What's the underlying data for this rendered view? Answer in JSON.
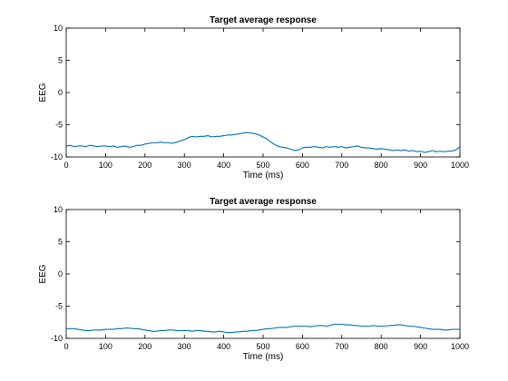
{
  "chart_data": [
    {
      "type": "line",
      "title": "Target average response",
      "xlabel": "Time (ms)",
      "ylabel": "EEG",
      "xlim": [
        0,
        1000
      ],
      "ylim": [
        -10,
        10
      ],
      "xticks": [
        0,
        100,
        200,
        300,
        400,
        500,
        600,
        700,
        800,
        900,
        1000
      ],
      "yticks": [
        -10,
        -5,
        0,
        5,
        10
      ],
      "grid": false,
      "series": [
        {
          "name": "Target average response",
          "color": "#0072BD",
          "x": [
            0,
            10,
            20,
            30,
            40,
            50,
            60,
            70,
            80,
            90,
            100,
            110,
            120,
            130,
            140,
            150,
            160,
            170,
            180,
            190,
            200,
            210,
            220,
            230,
            240,
            250,
            260,
            270,
            280,
            290,
            300,
            310,
            320,
            330,
            340,
            350,
            360,
            370,
            380,
            390,
            400,
            410,
            420,
            430,
            440,
            450,
            460,
            470,
            480,
            490,
            500,
            510,
            520,
            530,
            540,
            550,
            560,
            570,
            580,
            590,
            600,
            610,
            620,
            630,
            640,
            650,
            660,
            670,
            680,
            690,
            700,
            710,
            720,
            730,
            740,
            750,
            760,
            770,
            780,
            790,
            800,
            810,
            820,
            830,
            840,
            850,
            860,
            870,
            880,
            890,
            900,
            910,
            920,
            930,
            940,
            950,
            960,
            970,
            980,
            990,
            1000
          ],
          "y": [
            -8.3,
            -8.2,
            -8.4,
            -8.3,
            -8.3,
            -8.4,
            -8.2,
            -8.3,
            -8.4,
            -8.3,
            -8.3,
            -8.4,
            -8.3,
            -8.5,
            -8.4,
            -8.3,
            -8.5,
            -8.4,
            -8.2,
            -8.2,
            -8.0,
            -7.9,
            -7.8,
            -7.8,
            -7.7,
            -7.8,
            -7.8,
            -7.9,
            -7.7,
            -7.5,
            -7.3,
            -7.0,
            -6.8,
            -6.9,
            -6.8,
            -6.8,
            -6.7,
            -6.9,
            -6.8,
            -6.8,
            -6.7,
            -6.6,
            -6.6,
            -6.5,
            -6.4,
            -6.3,
            -6.2,
            -6.3,
            -6.4,
            -6.6,
            -6.9,
            -7.2,
            -7.7,
            -8.1,
            -8.4,
            -8.5,
            -8.6,
            -8.8,
            -9.0,
            -8.9,
            -8.6,
            -8.5,
            -8.5,
            -8.4,
            -8.5,
            -8.6,
            -8.4,
            -8.5,
            -8.4,
            -8.5,
            -8.4,
            -8.6,
            -8.5,
            -8.4,
            -8.3,
            -8.5,
            -8.6,
            -8.6,
            -8.7,
            -8.8,
            -8.7,
            -8.8,
            -8.9,
            -9.0,
            -8.9,
            -9.0,
            -8.9,
            -9.1,
            -9.0,
            -9.2,
            -9.1,
            -9.3,
            -9.2,
            -9.0,
            -9.2,
            -9.1,
            -9.2,
            -9.1,
            -9.1,
            -8.9,
            -8.4
          ]
        }
      ]
    },
    {
      "type": "line",
      "title": "Target average response",
      "xlabel": "Time (ms)",
      "ylabel": "EEG",
      "xlim": [
        0,
        1000
      ],
      "ylim": [
        -10,
        10
      ],
      "xticks": [
        0,
        100,
        200,
        300,
        400,
        500,
        600,
        700,
        800,
        900,
        1000
      ],
      "yticks": [
        -10,
        -5,
        0,
        5,
        10
      ],
      "grid": false,
      "series": [
        {
          "name": "Target average response",
          "color": "#0072BD",
          "x": [
            0,
            10,
            20,
            30,
            40,
            50,
            60,
            70,
            80,
            90,
            100,
            110,
            120,
            130,
            140,
            150,
            160,
            170,
            180,
            190,
            200,
            210,
            220,
            230,
            240,
            250,
            260,
            270,
            280,
            290,
            300,
            310,
            320,
            330,
            340,
            350,
            360,
            370,
            380,
            390,
            400,
            410,
            420,
            430,
            440,
            450,
            460,
            470,
            480,
            490,
            500,
            510,
            520,
            530,
            540,
            550,
            560,
            570,
            580,
            590,
            600,
            610,
            620,
            630,
            640,
            650,
            660,
            670,
            680,
            690,
            700,
            710,
            720,
            730,
            740,
            750,
            760,
            770,
            780,
            790,
            800,
            810,
            820,
            830,
            840,
            850,
            860,
            870,
            880,
            890,
            900,
            910,
            920,
            930,
            940,
            950,
            960,
            970,
            980,
            990,
            1000
          ],
          "y": [
            -8.5,
            -8.5,
            -8.5,
            -8.6,
            -8.7,
            -8.8,
            -8.8,
            -8.7,
            -8.7,
            -8.7,
            -8.6,
            -8.6,
            -8.6,
            -8.5,
            -8.5,
            -8.4,
            -8.4,
            -8.5,
            -8.5,
            -8.6,
            -8.7,
            -8.8,
            -8.9,
            -8.9,
            -8.8,
            -8.8,
            -8.7,
            -8.7,
            -8.8,
            -8.8,
            -8.8,
            -8.8,
            -8.9,
            -8.8,
            -8.8,
            -8.9,
            -8.9,
            -9.0,
            -9.0,
            -8.9,
            -9.0,
            -9.1,
            -9.1,
            -9.0,
            -9.0,
            -8.9,
            -8.9,
            -8.8,
            -8.8,
            -8.7,
            -8.6,
            -8.5,
            -8.5,
            -8.4,
            -8.3,
            -8.3,
            -8.3,
            -8.2,
            -8.1,
            -8.1,
            -8.1,
            -8.1,
            -8.2,
            -8.1,
            -8.0,
            -8.0,
            -8.1,
            -8.0,
            -7.8,
            -7.8,
            -7.8,
            -7.9,
            -7.9,
            -8.0,
            -8.0,
            -8.1,
            -8.1,
            -8.1,
            -8.0,
            -8.1,
            -8.1,
            -8.1,
            -8.0,
            -8.0,
            -7.9,
            -7.9,
            -8.0,
            -8.1,
            -8.1,
            -8.2,
            -8.3,
            -8.4,
            -8.5,
            -8.6,
            -8.6,
            -8.6,
            -8.7,
            -8.7,
            -8.6,
            -8.6,
            -8.6
          ]
        }
      ]
    }
  ]
}
